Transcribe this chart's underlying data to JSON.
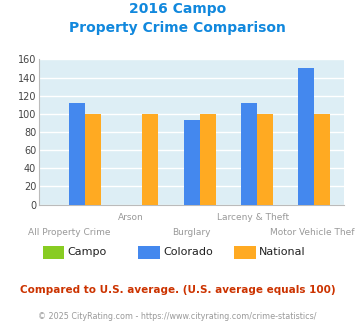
{
  "title_line1": "2016 Campo",
  "title_line2": "Property Crime Comparison",
  "categories": [
    "All Property Crime",
    "Arson",
    "Burglary",
    "Larceny & Theft",
    "Motor Vehicle Theft"
  ],
  "x_labels_top": [
    "",
    "Arson",
    "",
    "Larceny & Theft",
    ""
  ],
  "x_labels_bottom": [
    "All Property Crime",
    "",
    "Burglary",
    "",
    "Motor Vehicle Theft"
  ],
  "series": {
    "Campo": [
      0,
      0,
      0,
      0,
      0
    ],
    "Colorado": [
      112,
      0,
      93,
      112,
      150
    ],
    "National": [
      100,
      100,
      100,
      100,
      100
    ]
  },
  "colors": {
    "Campo": "#88cc22",
    "Colorado": "#4488ee",
    "National": "#ffaa22"
  },
  "ylim": [
    0,
    160
  ],
  "yticks": [
    0,
    20,
    40,
    60,
    80,
    100,
    120,
    140,
    160
  ],
  "background_color": "#ddeef5",
  "grid_color": "#ffffff",
  "title_color": "#1188dd",
  "footnote1": "Compared to U.S. average. (U.S. average equals 100)",
  "footnote2": "© 2025 CityRating.com - https://www.cityrating.com/crime-statistics/",
  "footnote1_color": "#cc3300",
  "footnote2_color": "#999999",
  "bar_width": 0.28
}
